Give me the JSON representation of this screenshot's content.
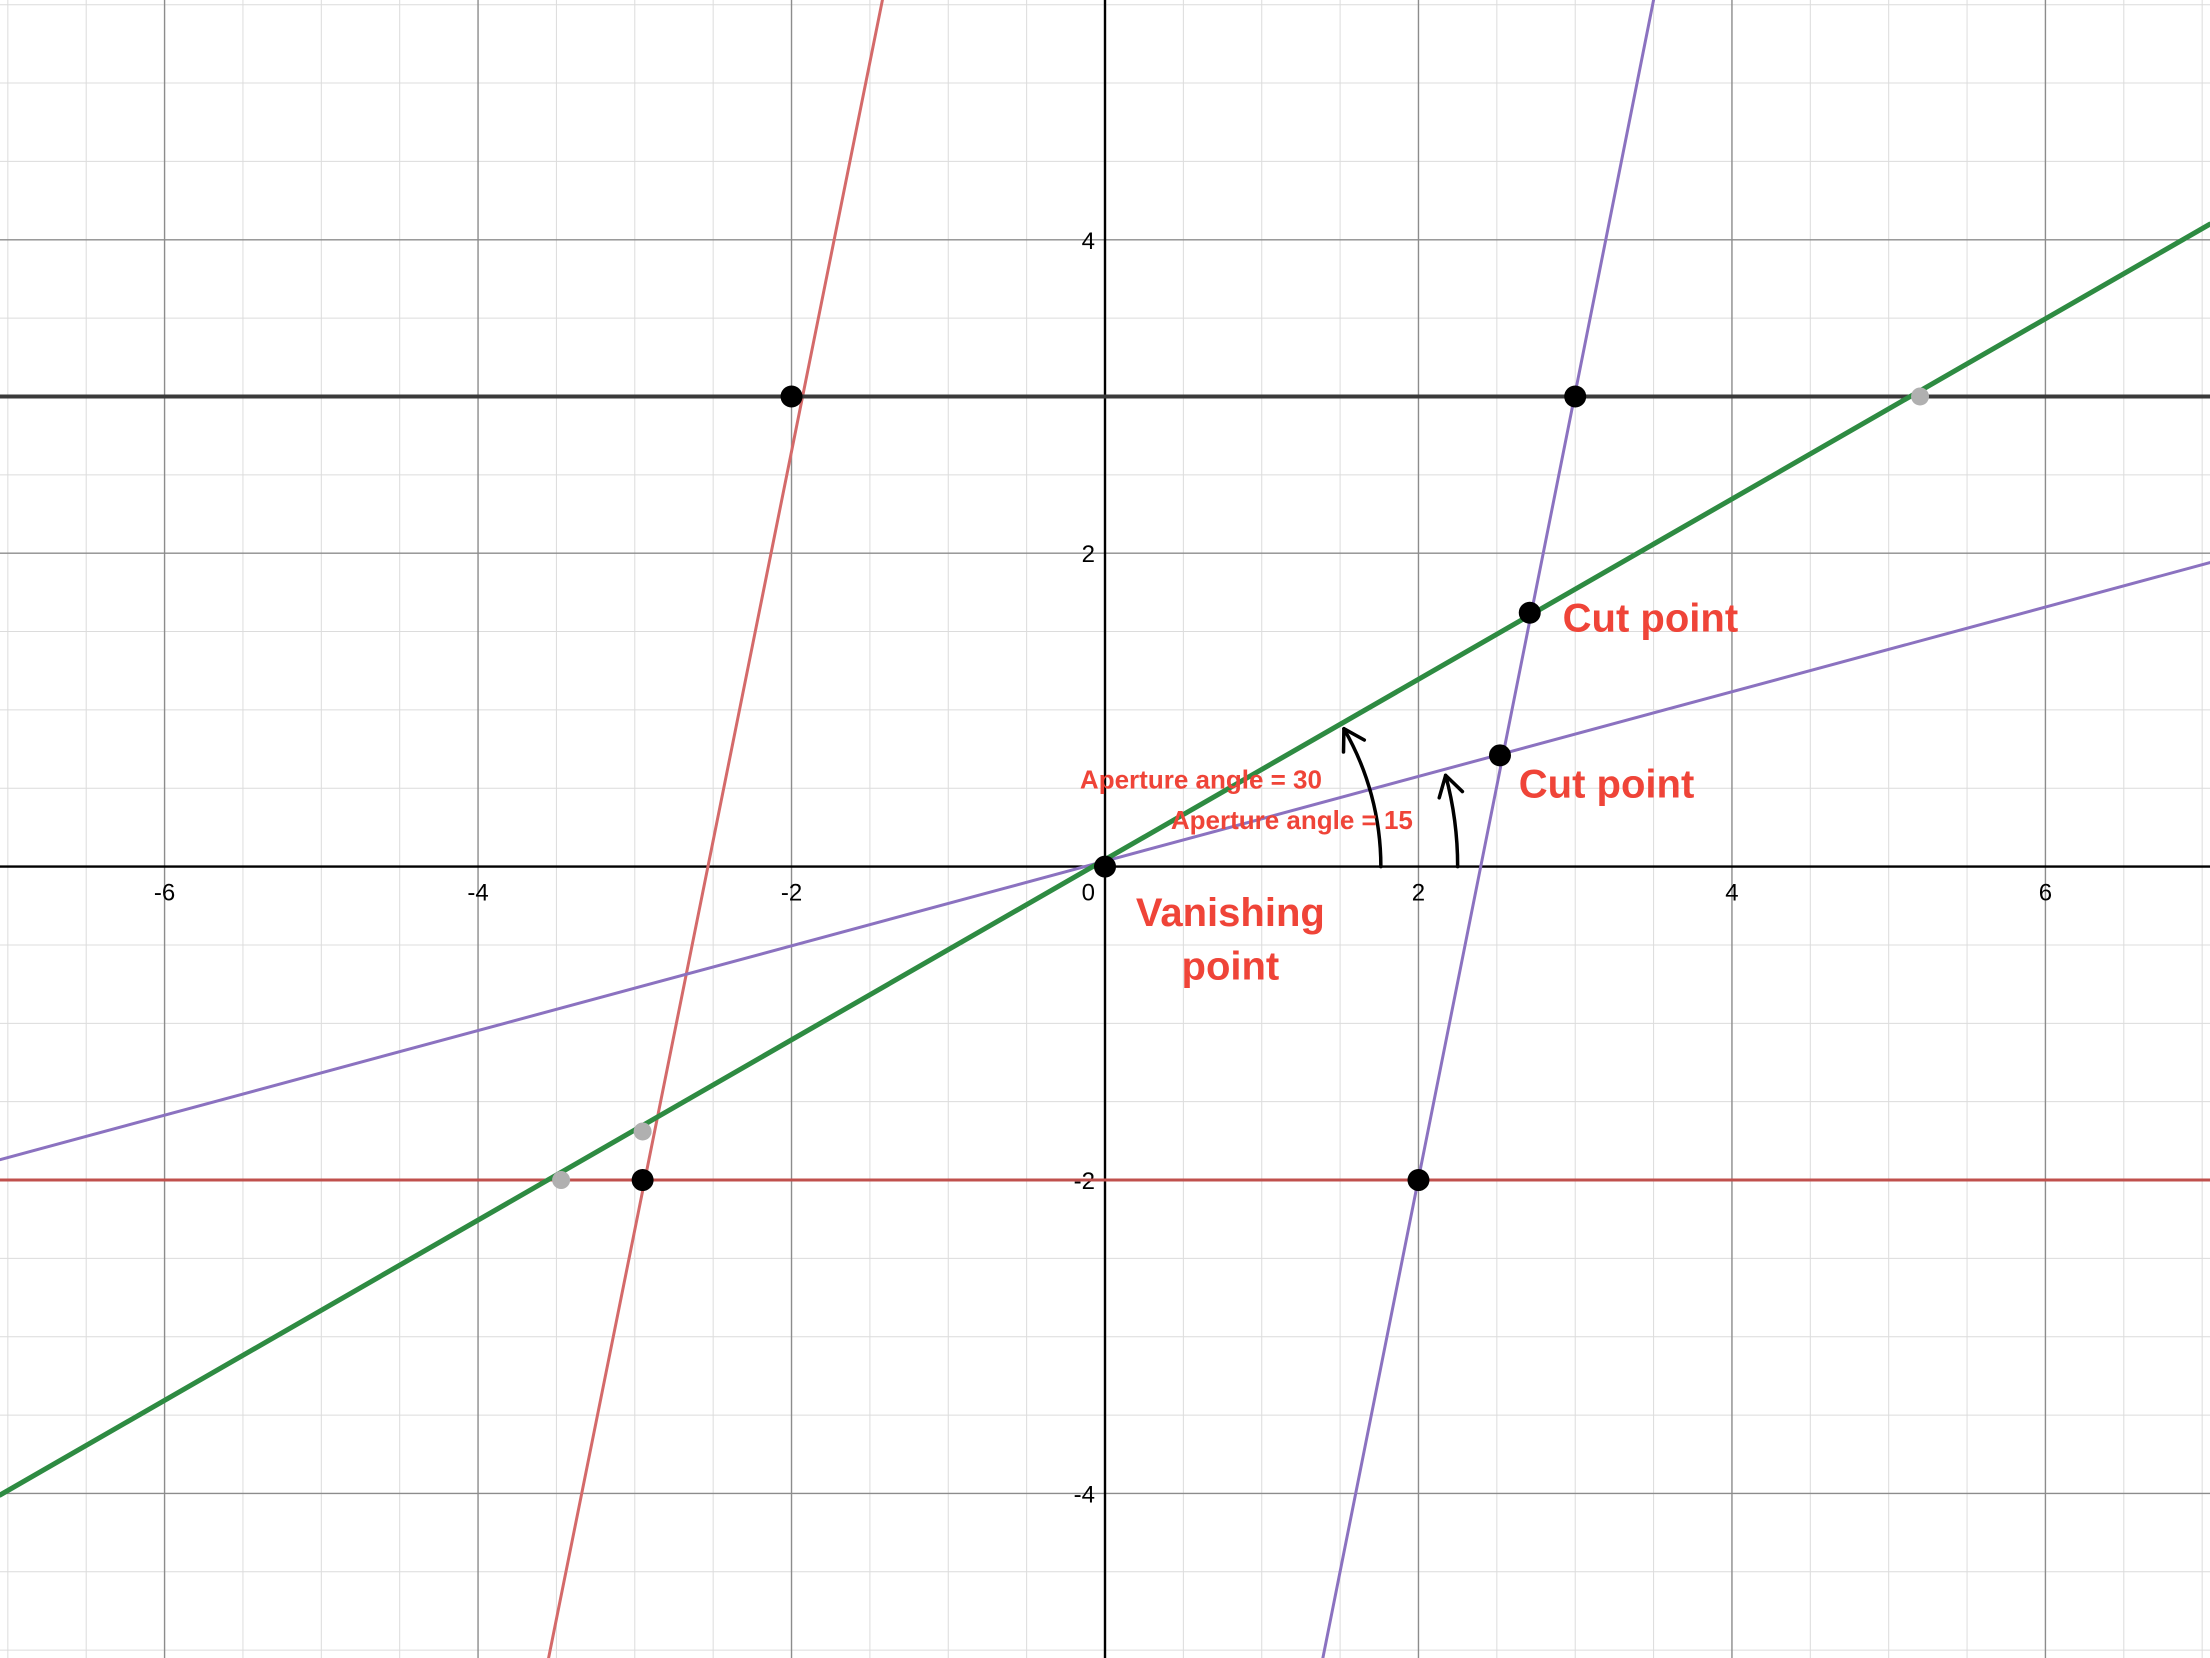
{
  "chart_data": {
    "type": "line",
    "title": "",
    "xlabel": "",
    "ylabel": "",
    "xlim": [
      -7.05,
      7.05
    ],
    "ylim": [
      -5.05,
      5.53
    ],
    "grid": true,
    "minor_grid_step": 0.5,
    "x_ticks": [
      "-6",
      "-4",
      "-2",
      "2",
      "4",
      "6"
    ],
    "y_ticks": [
      "4",
      "2",
      "-2",
      "-4"
    ],
    "origin_label": "0",
    "colors": {
      "red": "#d46a6a",
      "dark_red": "#c0504d",
      "purple": "#8b72c0",
      "green": "#2e8b42",
      "black": "#3a3a3a",
      "annotation": "#ef4438",
      "marker": "#000000",
      "gray_point": "#b0b0b0"
    },
    "series": [
      {
        "x": [
          -3.55,
          -1.42
        ],
        "y": [
          -5.05,
          5.53
        ],
        "color": "red",
        "width": 3
      },
      {
        "x": [
          -7.05,
          7.05
        ],
        "y": [
          -2,
          -2
        ],
        "color": "dark_red",
        "width": 3
      },
      {
        "x": [
          -7.05,
          7.05
        ],
        "y": [
          3,
          3
        ],
        "color": "black",
        "width": 4
      },
      {
        "x": [
          -7.05,
          7.05
        ],
        "y": [
          -1.87,
          1.94
        ],
        "color": "purple",
        "width": 3
      },
      {
        "x": [
          1.39,
          3.5
        ],
        "y": [
          -5.05,
          5.53
        ],
        "color": "purple",
        "width": 3
      },
      {
        "x": [
          -7.05,
          7.05
        ],
        "y": [
          -4.01,
          4.1
        ],
        "color": "green",
        "width": 5
      }
    ],
    "marked_points": [
      {
        "x": -2,
        "y": 3
      },
      {
        "x": 3,
        "y": 3
      },
      {
        "x": -2.95,
        "y": -2
      },
      {
        "x": 2,
        "y": -2
      },
      {
        "x": 0,
        "y": 0
      },
      {
        "x": 2.71,
        "y": 1.62
      },
      {
        "x": 2.52,
        "y": 0.71
      }
    ],
    "gray_points": [
      {
        "x": 5.2,
        "y": 3
      },
      {
        "x": -3.47,
        "y": -2
      },
      {
        "x": -2.95,
        "y": -1.69
      }
    ],
    "angle_arcs": [
      {
        "r": 1.76,
        "from_deg": 0,
        "to_deg": 30
      },
      {
        "r": 2.25,
        "from_deg": 0,
        "to_deg": 15
      }
    ],
    "annotations": [
      {
        "text": "Cut point",
        "x": 2.92,
        "y": 1.5,
        "size": 40
      },
      {
        "text": "Cut point",
        "x": 2.64,
        "y": 0.44,
        "size": 40
      },
      {
        "text": "Aperture angle = 30",
        "x": -0.16,
        "y": 0.5,
        "size": 26
      },
      {
        "text": "Aperture angle = 15",
        "x": 0.42,
        "y": 0.24,
        "size": 26
      },
      {
        "text": "Vanishing",
        "x": 0.8,
        "y": -0.38,
        "size": 40,
        "anchor": "middle"
      },
      {
        "text": "point",
        "x": 0.8,
        "y": -0.72,
        "size": 40,
        "anchor": "middle"
      }
    ]
  }
}
